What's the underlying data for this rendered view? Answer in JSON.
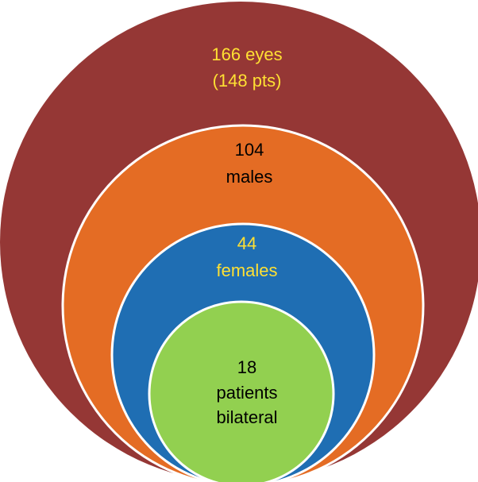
{
  "diagram": {
    "levels": [
      {
        "id": "eyes",
        "lines": [
          "166 eyes",
          "(148 pts)"
        ],
        "fill": "#953735",
        "text_color": "#ffe033"
      },
      {
        "id": "males",
        "lines": [
          "104",
          "males"
        ],
        "fill": "#e46c24",
        "text_color": "#000000"
      },
      {
        "id": "females",
        "lines": [
          "44",
          "females"
        ],
        "fill": "#1f6eb3",
        "text_color": "#ffe033"
      },
      {
        "id": "bilateral",
        "lines": [
          "18",
          "patients",
          "bilateral"
        ],
        "fill": "#92d050",
        "text_color": "#000000"
      }
    ],
    "stroke_color": "#ffffff"
  }
}
